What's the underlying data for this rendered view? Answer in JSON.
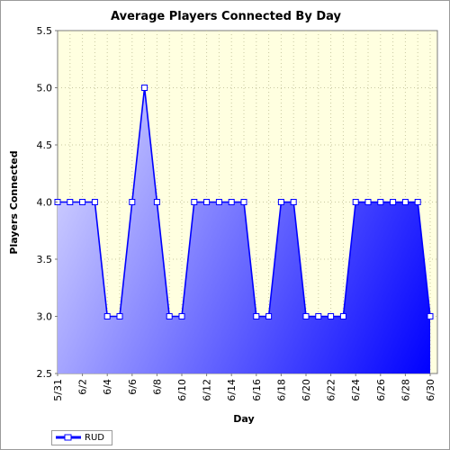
{
  "chart_data": {
    "type": "area",
    "title": "Average Players Connected By Day",
    "xlabel": "Day",
    "ylabel": "Players Connected",
    "ylim": [
      2.5,
      5.5
    ],
    "yticks": [
      "2.5",
      "3.0",
      "3.5",
      "4.0",
      "4.5",
      "5.0",
      "5.5"
    ],
    "x": [
      "5/31",
      "6/1",
      "6/2",
      "6/3",
      "6/4",
      "6/5",
      "6/6",
      "6/7",
      "6/8",
      "6/9",
      "6/10",
      "6/11",
      "6/12",
      "6/13",
      "6/14",
      "6/15",
      "6/16",
      "6/17",
      "6/18",
      "6/19",
      "6/20",
      "6/21",
      "6/22",
      "6/23",
      "6/24",
      "6/25",
      "6/26",
      "6/27",
      "6/28",
      "6/29",
      "6/30"
    ],
    "xtick_labels": [
      "5/31",
      "6/2",
      "6/4",
      "6/6",
      "6/8",
      "6/10",
      "6/12",
      "6/14",
      "6/16",
      "6/18",
      "6/20",
      "6/22",
      "6/24",
      "6/26",
      "6/28",
      "6/30"
    ],
    "series": [
      {
        "name": "RUD",
        "values": [
          4,
          4,
          4,
          4,
          3,
          3,
          4,
          5,
          4,
          3,
          3,
          4,
          4,
          4,
          4,
          4,
          3,
          3,
          4,
          4,
          3,
          3,
          3,
          3,
          4,
          4,
          4,
          4,
          4,
          4,
          3
        ]
      }
    ],
    "grid": true,
    "legend_position": "bottom-left",
    "colors": {
      "plot_background": "#ffffe0",
      "fill_start": "#c8c8ff",
      "fill_end": "#0000ff",
      "line": "#0000ff",
      "marker_fill": "#ffffff"
    }
  }
}
